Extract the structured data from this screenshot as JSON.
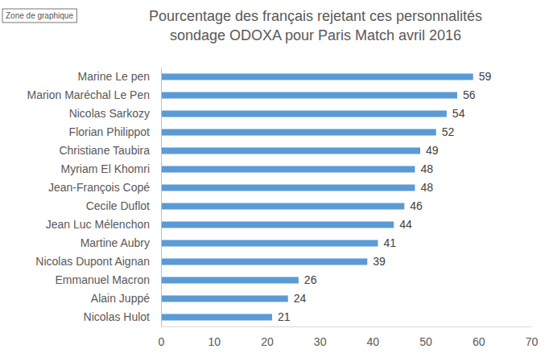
{
  "chart_data": {
    "type": "bar",
    "orientation": "horizontal",
    "title": "Pourcentage des français rejetant ces personnalités",
    "subtitle": "sondage ODOXA pour Paris Match avril 2016",
    "annotations": [
      "Zone de graphique"
    ],
    "categories": [
      "Marine Le pen",
      "Marion Maréchal Le Pen",
      "Nicolas Sarkozy",
      "Florian Philippot",
      "Christiane Taubira",
      "Myriam El Khomri",
      "Jean-François Copé",
      "Cecile Duflot",
      "Jean Luc Mélenchon",
      "Martine Aubry",
      "Nicolas Dupont Aignan",
      "Emmanuel Macron",
      "Alain Juppé",
      "Nicolas Hulot"
    ],
    "values": [
      59,
      56,
      54,
      52,
      49,
      48,
      48,
      46,
      44,
      41,
      39,
      26,
      24,
      21
    ],
    "color": "#5b9bd5",
    "xlim": [
      0,
      70
    ],
    "xticks": [
      0,
      10,
      20,
      30,
      40,
      50,
      60,
      70
    ],
    "grid": false,
    "data_labels": true
  }
}
